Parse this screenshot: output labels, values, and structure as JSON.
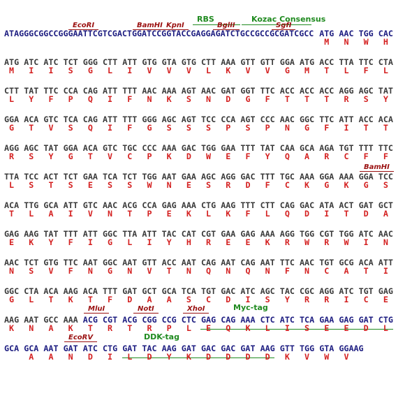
{
  "labels": [
    "RBS",
    "Kozac Consensus",
    "EcoRI",
    "BamHI",
    "KpnI",
    "BglII",
    "SgfI",
    "BamHI",
    "MluI",
    "NotI",
    "XhoI",
    "Myc-tag",
    "EcoRV",
    "DDK-tag"
  ],
  "rows": [
    {
      "dna": [
        "ATAGGGCGGCCGGGAATTCGTCGACTGGATCCGGTACCGAGGAGATCTGCCGCCGCGATCGCC",
        "ATG",
        "AAC",
        "TGG",
        "CAC"
      ],
      "aa": [
        "M",
        "N",
        "W",
        "H"
      ]
    },
    {
      "dna": [
        "ATG",
        "ATC",
        "ATC",
        "TCT",
        "GGG",
        "CTT",
        "ATT",
        "GTG",
        "GTA",
        "GTG",
        "CTT",
        "AAA",
        "GTT",
        "GTT",
        "GGA",
        "ATG",
        "ACC",
        "TTA",
        "TTC",
        "CTA"
      ],
      "aa": [
        "M",
        "I",
        "I",
        "S",
        "G",
        "L",
        "I",
        "V",
        "V",
        "V",
        "L",
        "K",
        "V",
        "V",
        "G",
        "M",
        "T",
        "L",
        "F",
        "L"
      ]
    },
    {
      "dna": [
        "CTT",
        "TAT",
        "TTC",
        "CCA",
        "CAG",
        "ATT",
        "TTT",
        "AAC",
        "AAA",
        "AGT",
        "AAC",
        "GAT",
        "GGT",
        "TTC",
        "ACC",
        "ACC",
        "ACC",
        "AGG",
        "AGC",
        "TAT"
      ],
      "aa": [
        "L",
        "Y",
        "F",
        "P",
        "Q",
        "I",
        "F",
        "N",
        "K",
        "S",
        "N",
        "D",
        "G",
        "F",
        "T",
        "T",
        "T",
        "R",
        "S",
        "Y"
      ]
    },
    {
      "dna": [
        "GGA",
        "ACA",
        "GTC",
        "TCA",
        "CAG",
        "ATT",
        "TTT",
        "GGG",
        "AGC",
        "AGT",
        "TCC",
        "CCA",
        "AGT",
        "CCC",
        "AAC",
        "GGC",
        "TTC",
        "ATT",
        "ACC",
        "ACA"
      ],
      "aa": [
        "G",
        "T",
        "V",
        "S",
        "Q",
        "I",
        "F",
        "G",
        "S",
        "S",
        "S",
        "P",
        "S",
        "P",
        "N",
        "G",
        "F",
        "I",
        "T",
        "T"
      ]
    },
    {
      "dna": [
        "AGG",
        "AGC",
        "TAT",
        "GGA",
        "ACA",
        "GTC",
        "TGC",
        "CCC",
        "AAA",
        "GAC",
        "TGG",
        "GAA",
        "TTT",
        "TAT",
        "CAA",
        "GCA",
        "AGA",
        "TGT",
        "TTT",
        "TTC"
      ],
      "aa": [
        "R",
        "S",
        "Y",
        "G",
        "T",
        "V",
        "C",
        "P",
        "K",
        "D",
        "W",
        "E",
        "F",
        "Y",
        "Q",
        "A",
        "R",
        "C",
        "F",
        "F"
      ]
    },
    {
      "dna": [
        "TTA",
        "TCC",
        "ACT",
        "TCT",
        "GAA",
        "TCA",
        "TCT",
        "TGG",
        "AAT",
        "GAA",
        "AGC",
        "AGG",
        "GAC",
        "TTT",
        "TGC",
        "AAA",
        "GGA",
        "AAA",
        "GGA",
        "TCC"
      ],
      "aa": [
        "L",
        "S",
        "T",
        "S",
        "E",
        "S",
        "S",
        "W",
        "N",
        "E",
        "S",
        "R",
        "D",
        "F",
        "C",
        "K",
        "G",
        "K",
        "G",
        "S"
      ]
    },
    {
      "dna": [
        "ACA",
        "TTG",
        "GCA",
        "ATT",
        "GTC",
        "AAC",
        "ACG",
        "CCA",
        "GAG",
        "AAA",
        "CTG",
        "AAG",
        "TTT",
        "CTT",
        "CAG",
        "GAC",
        "ATA",
        "ACT",
        "GAT",
        "GCT"
      ],
      "aa": [
        "T",
        "L",
        "A",
        "I",
        "V",
        "N",
        "T",
        "P",
        "E",
        "K",
        "L",
        "K",
        "F",
        "L",
        "Q",
        "D",
        "I",
        "T",
        "D",
        "A"
      ]
    },
    {
      "dna": [
        "GAG",
        "AAG",
        "TAT",
        "TTT",
        "ATT",
        "GGC",
        "TTA",
        "ATT",
        "TAC",
        "CAT",
        "CGT",
        "GAA",
        "GAG",
        "AAA",
        "AGG",
        "TGG",
        "CGT",
        "TGG",
        "ATC",
        "AAC"
      ],
      "aa": [
        "E",
        "K",
        "Y",
        "F",
        "I",
        "G",
        "L",
        "I",
        "Y",
        "H",
        "R",
        "E",
        "E",
        "K",
        "R",
        "W",
        "R",
        "W",
        "I",
        "N"
      ]
    },
    {
      "dna": [
        "AAC",
        "TCT",
        "GTG",
        "TTC",
        "AAT",
        "GGC",
        "AAT",
        "GTT",
        "ACC",
        "AAT",
        "CAG",
        "AAT",
        "CAG",
        "AAT",
        "TTC",
        "AAC",
        "TGT",
        "GCG",
        "ACA",
        "ATT"
      ],
      "aa": [
        "N",
        "S",
        "V",
        "F",
        "N",
        "G",
        "N",
        "V",
        "T",
        "N",
        "Q",
        "N",
        "Q",
        "N",
        "F",
        "N",
        "C",
        "A",
        "T",
        "I"
      ]
    },
    {
      "dna": [
        "GGC",
        "CTA",
        "ACA",
        "AAG",
        "ACA",
        "TTT",
        "GAT",
        "GCT",
        "GCA",
        "TCA",
        "TGT",
        "GAC",
        "ATC",
        "AGC",
        "TAC",
        "CGC",
        "AGG",
        "ATC",
        "TGT",
        "GAG"
      ],
      "aa": [
        "G",
        "L",
        "T",
        "K",
        "T",
        "F",
        "D",
        "A",
        "A",
        "S",
        "C",
        "D",
        "I",
        "S",
        "Y",
        "R",
        "R",
        "I",
        "C",
        "E"
      ]
    },
    {
      "dna": [
        "AAG",
        "AAT",
        "GCC",
        "AAA",
        "ACG",
        "CGT",
        "ACG",
        "CGG",
        "CCG",
        "CTC",
        "GAG",
        "CAG",
        "AAA",
        "CTC",
        "ATC",
        "TCA",
        "GAA",
        "GAG",
        "GAT",
        "CTG"
      ],
      "aa": [
        "K",
        "N",
        "A",
        "K",
        "T",
        "R",
        "T",
        "R",
        "P",
        "L",
        "E",
        "Q",
        "K",
        "L",
        "I",
        "S",
        "E",
        "E",
        "D",
        "L"
      ]
    },
    {
      "dna": [
        "GCA",
        "GCA",
        "AAT",
        "GAT",
        "ATC",
        "CTG",
        "GAT",
        "TAC",
        "AAG",
        "GAT",
        "GAC",
        "GAC",
        "GAT",
        "AAG",
        "GTT",
        "TGG",
        "GTA",
        "GGAAG"
      ],
      "aa": [
        "A",
        "A",
        "N",
        "D",
        "I",
        "L",
        "D",
        "Y",
        "K",
        "D",
        "D",
        "D",
        "D",
        "K",
        "V",
        "W",
        "V"
      ]
    }
  ]
}
